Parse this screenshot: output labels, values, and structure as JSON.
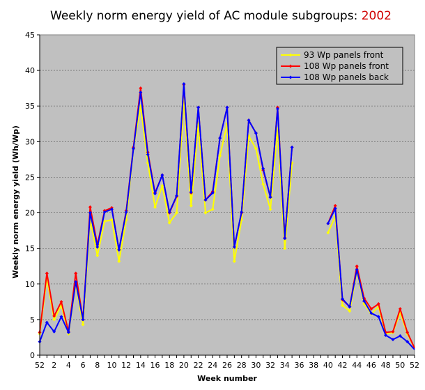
{
  "chart_data": {
    "type": "line",
    "title": "Weekly norm energy yield of AC module subgroups: ",
    "title_year": "2002",
    "xlabel": "Week number",
    "ylabel": "Weekly norm energy yield (Wh/Wp)",
    "ylim": [
      0,
      45
    ],
    "yticks": [
      "0",
      "5",
      "10",
      "15",
      "20",
      "25",
      "30",
      "35",
      "40",
      "45"
    ],
    "xtick_labels": [
      "52",
      "2",
      "4",
      "6",
      "8",
      "10",
      "12",
      "14",
      "16",
      "18",
      "20",
      "22",
      "24",
      "26",
      "28",
      "30",
      "32",
      "34",
      "36",
      "38",
      "40",
      "42",
      "44",
      "46",
      "48",
      "50",
      "52"
    ],
    "grid": "horizontal",
    "legend_position": "top-right",
    "plot_background": "#c0c0c0",
    "series": [
      {
        "name": "93 Wp panels front",
        "color": "#ffff00",
        "values": [
          3.0,
          10.8,
          5.0,
          7.0,
          3.0,
          10.0,
          4.3,
          19.0,
          14.0,
          18.8,
          19.0,
          13.2,
          19.0,
          29.0,
          35.0,
          27.0,
          20.8,
          23.8,
          18.6,
          20.0,
          36.0,
          21.0,
          32.5,
          20.0,
          20.5,
          28.0,
          32.5,
          13.2,
          19.0,
          30.8,
          29.0,
          24.0,
          20.5,
          31.8,
          15.0,
          27.0,
          null,
          null,
          null,
          null,
          17.2,
          19.5,
          7.0,
          6.2,
          11.8,
          7.2,
          5.8,
          6.8,
          3.0,
          3.2,
          6.0,
          3.0,
          1.0
        ],
        "markers": [
          true,
          true,
          true,
          true,
          true,
          true,
          true,
          true,
          true,
          true,
          true,
          true,
          true,
          true,
          true,
          true,
          true,
          true,
          true,
          true,
          true,
          true,
          true,
          true,
          true,
          true,
          true,
          true,
          true,
          true,
          true,
          true,
          true,
          true,
          true,
          true,
          false,
          false,
          false,
          false,
          true,
          true,
          true,
          true,
          true,
          true,
          true,
          true,
          true,
          true,
          true,
          true,
          false
        ]
      },
      {
        "name": "108 Wp panels front",
        "color": "#ff0000",
        "values": [
          3.2,
          11.5,
          5.5,
          7.5,
          3.3,
          11.5,
          5.0,
          20.8,
          15.5,
          20.3,
          20.7,
          14.8,
          20.3,
          29.2,
          37.5,
          28.5,
          22.8,
          25.3,
          20.0,
          22.3,
          38.0,
          22.8,
          34.8,
          21.8,
          23.0,
          30.5,
          34.8,
          15.2,
          20.0,
          33.0,
          31.2,
          26.0,
          22.2,
          34.8,
          16.5,
          29.2,
          null,
          null,
          null,
          null,
          18.5,
          21.0,
          7.8,
          6.8,
          12.5,
          8.0,
          6.5,
          7.2,
          3.2,
          3.3,
          6.5,
          3.2,
          1.0
        ],
        "markers": [
          true,
          true,
          true,
          true,
          true,
          true,
          true,
          true,
          true,
          true,
          true,
          true,
          true,
          true,
          true,
          true,
          true,
          true,
          true,
          true,
          true,
          true,
          true,
          true,
          true,
          true,
          true,
          true,
          true,
          true,
          true,
          true,
          true,
          true,
          true,
          true,
          false,
          false,
          false,
          false,
          true,
          true,
          true,
          true,
          true,
          true,
          true,
          true,
          true,
          true,
          true,
          true,
          false
        ]
      },
      {
        "name": "108 Wp panels back",
        "color": "#0000ff",
        "values": [
          1.9,
          4.6,
          3.3,
          5.4,
          3.2,
          10.3,
          5.0,
          20.0,
          15.2,
          20.1,
          20.5,
          14.8,
          20.1,
          29.0,
          36.9,
          28.2,
          22.7,
          25.3,
          20.1,
          22.4,
          38.1,
          22.9,
          34.8,
          21.8,
          22.8,
          30.5,
          34.8,
          15.2,
          20.1,
          33.0,
          31.2,
          26.2,
          22.2,
          34.6,
          16.4,
          29.2,
          null,
          null,
          null,
          null,
          18.5,
          20.6,
          7.9,
          6.8,
          12.0,
          7.6,
          5.9,
          5.4,
          2.8,
          2.2,
          2.7,
          1.9,
          0.8
        ],
        "markers": [
          true,
          true,
          true,
          true,
          true,
          true,
          true,
          true,
          true,
          true,
          true,
          true,
          true,
          true,
          true,
          true,
          true,
          true,
          true,
          true,
          true,
          true,
          true,
          true,
          true,
          true,
          true,
          true,
          true,
          true,
          true,
          true,
          true,
          true,
          true,
          true,
          false,
          false,
          false,
          false,
          true,
          true,
          true,
          true,
          true,
          true,
          true,
          true,
          true,
          true,
          true,
          true,
          false
        ]
      }
    ]
  }
}
